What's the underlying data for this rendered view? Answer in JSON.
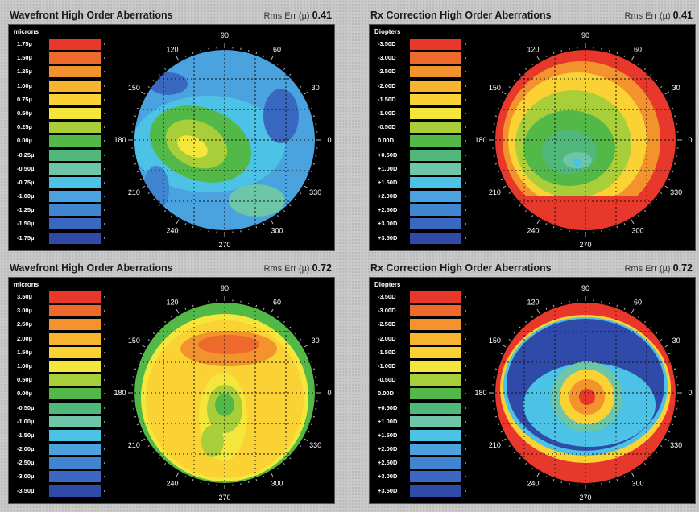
{
  "panels": [
    {
      "title": "Wavefront High Order Aberrations",
      "rms_label": "Rms Err (µ)",
      "rms_value": "0.41",
      "units": "microns",
      "scale": [
        "1.75µ",
        "1.50µ",
        "1.25µ",
        "1.00µ",
        "0.75µ",
        "0.50µ",
        "0.25µ",
        "0.00µ",
        "-0.25µ",
        "-0.50µ",
        "-0.75µ",
        "-1.00µ",
        "-1.25µ",
        "-1.50µ",
        "-1.75µ"
      ],
      "angles": [
        "90",
        "120",
        "60",
        "150",
        "30",
        "180",
        "0",
        "210",
        "330",
        "240",
        "300",
        "270"
      ],
      "map": "wf1"
    },
    {
      "title": "Rx Correction High Order Aberrations",
      "rms_label": "Rms Err (µ)",
      "rms_value": "0.41",
      "units": "Diopters",
      "scale": [
        "-3.50D",
        "-3.00D",
        "-2.50D",
        "-2.00D",
        "-1.50D",
        "-1.00D",
        "-0.50D",
        "0.00D",
        "+0.50D",
        "+1.00D",
        "+1.50D",
        "+2.00D",
        "+2.50D",
        "+3.00D",
        "+3.50D"
      ],
      "angles": [
        "90",
        "120",
        "60",
        "150",
        "30",
        "180",
        "0",
        "210",
        "330",
        "240",
        "300",
        "270"
      ],
      "map": "rx1"
    },
    {
      "title": "Wavefront High Order Aberrations",
      "rms_label": "Rms Err (µ)",
      "rms_value": "0.72",
      "units": "microns",
      "scale": [
        "3.50µ",
        "3.00µ",
        "2.50µ",
        "2.00µ",
        "1.50µ",
        "1.00µ",
        "0.50µ",
        "0.00µ",
        "-0.50µ",
        "-1.00µ",
        "-1.50µ",
        "-2.00µ",
        "-2.50µ",
        "-3.00µ",
        "-3.50µ"
      ],
      "angles": [
        "90",
        "120",
        "60",
        "150",
        "30",
        "180",
        "0",
        "210",
        "330",
        "240",
        "300",
        "270"
      ],
      "map": "wf2"
    },
    {
      "title": "Rx Correction High Order Aberrations",
      "rms_label": "Rms Err (µ)",
      "rms_value": "0.72",
      "units": "Diopters",
      "scale": [
        "-3.50D",
        "-3.00D",
        "-2.50D",
        "-2.00D",
        "-1.50D",
        "-1.00D",
        "-0.50D",
        "0.00D",
        "+0.50D",
        "+1.00D",
        "+1.50D",
        "+2.00D",
        "+2.50D",
        "+3.00D",
        "+3.50D"
      ],
      "angles": [
        "90",
        "120",
        "60",
        "150",
        "30",
        "180",
        "0",
        "210",
        "330",
        "240",
        "300",
        "270"
      ],
      "map": "rx2"
    }
  ],
  "colors": [
    "#e8372b",
    "#ee6a2c",
    "#f3932d",
    "#f8b42f",
    "#fbd233",
    "#f4e63a",
    "#a8cf3a",
    "#52b847",
    "#4fb87a",
    "#6ec6a8",
    "#4cc2e6",
    "#4aa3de",
    "#3f85d0",
    "#3a68c0",
    "#2f4aa8"
  ]
}
